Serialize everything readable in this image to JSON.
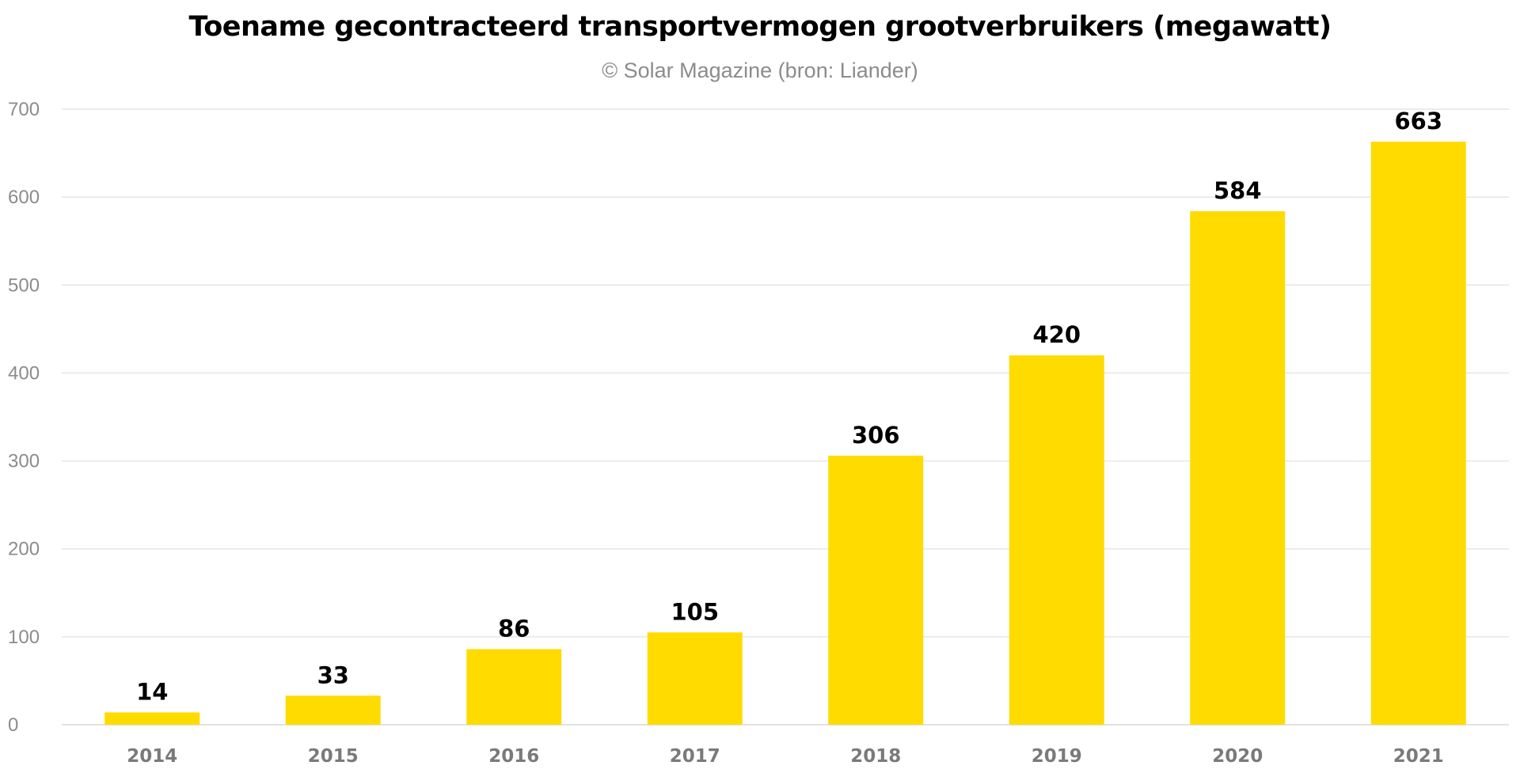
{
  "chart_data": {
    "type": "bar",
    "title": "Toename gecontracteerd transportvermogen grootverbruikers (megawatt)",
    "subtitle": "© Solar Magazine (bron: Liander)",
    "categories": [
      "2014",
      "2015",
      "2016",
      "2017",
      "2018",
      "2019",
      "2020",
      "2021"
    ],
    "values": [
      14,
      33,
      86,
      105,
      306,
      420,
      584,
      663
    ],
    "xlabel": "",
    "ylabel": "",
    "ylim": [
      0,
      700
    ],
    "yticks": [
      0,
      100,
      200,
      300,
      400,
      500,
      600,
      700
    ],
    "grid": true,
    "legend": "none",
    "data_labels": true,
    "colors": {
      "bar": "#FFDB00",
      "grid": "#e6e6e6",
      "axis": "#d9d9d9"
    }
  }
}
